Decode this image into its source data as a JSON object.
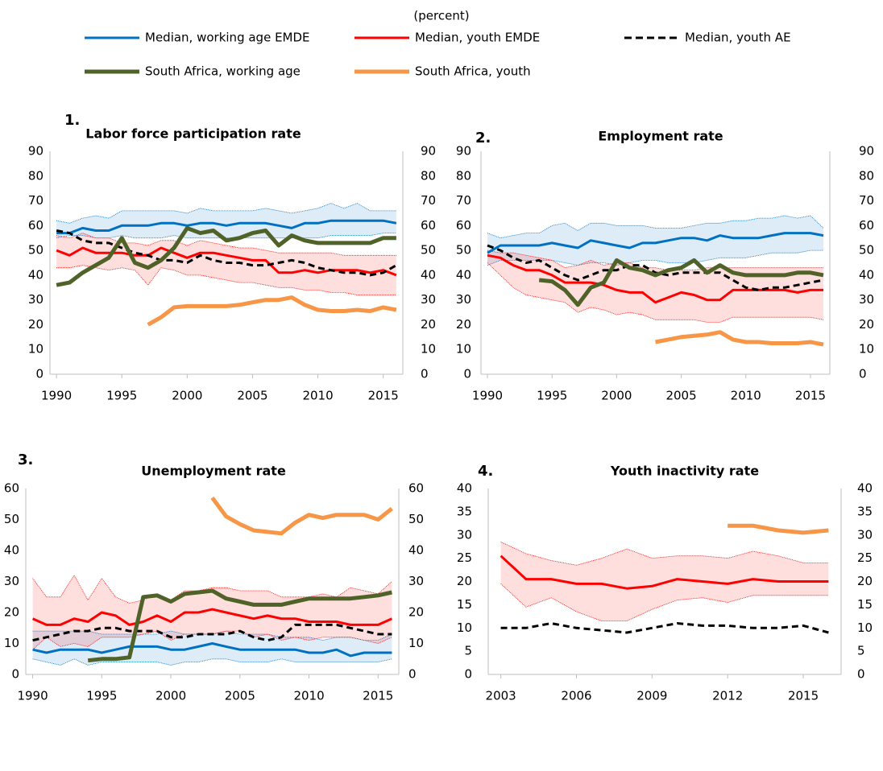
{
  "subtitle": "(percent)",
  "legend": [
    {
      "name": "Median, working age EMDE",
      "color": "#0070c0",
      "dash": false,
      "width": 3
    },
    {
      "name": "Median, youth EMDE",
      "color": "#ff0000",
      "dash": false,
      "width": 3
    },
    {
      "name": "Median, youth AE",
      "color": "#000000",
      "dash": true,
      "width": 3
    },
    {
      "name": "South Africa, working age",
      "color": "#4f6228",
      "dash": false,
      "width": 5
    },
    {
      "name": "South Africa, youth",
      "color": "#f79646",
      "dash": false,
      "width": 5
    }
  ],
  "chart_data": [
    {
      "type": "line",
      "number": "1.",
      "title": "Labor force participation rate",
      "x": [
        1990,
        1991,
        1992,
        1993,
        1994,
        1995,
        1996,
        1997,
        1998,
        1999,
        2000,
        2001,
        2002,
        2003,
        2004,
        2005,
        2006,
        2007,
        2008,
        2009,
        2010,
        2011,
        2012,
        2013,
        2014,
        2015,
        2016
      ],
      "xlim": [
        1989.5,
        2016.5
      ],
      "xticks": [
        1990,
        1995,
        2000,
        2005,
        2010,
        2015
      ],
      "ylim": [
        0,
        90
      ],
      "yticks": [
        0,
        10,
        20,
        30,
        40,
        50,
        60,
        70,
        80,
        90
      ],
      "bands": [
        {
          "color": "#0070c0",
          "upper": [
            62,
            61,
            63,
            64,
            63,
            66,
            66,
            66,
            66,
            66,
            65,
            67,
            66,
            66,
            66,
            66,
            67,
            66,
            65,
            66,
            67,
            69,
            67,
            69,
            66,
            66,
            66
          ],
          "lower": [
            55,
            56,
            56,
            55,
            55,
            56,
            55,
            55,
            55,
            56,
            55,
            55,
            55,
            55,
            55,
            55,
            55,
            55,
            55,
            55,
            55,
            56,
            56,
            56,
            56,
            57,
            57
          ]
        },
        {
          "color": "#ff0000",
          "upper": [
            56,
            55,
            57,
            55,
            55,
            53,
            53,
            52,
            54,
            54,
            52,
            54,
            53,
            52,
            51,
            51,
            50,
            49,
            49,
            49,
            49,
            49,
            48,
            48,
            48,
            48,
            48
          ],
          "lower": [
            43,
            43,
            44,
            43,
            42,
            43,
            42,
            36,
            43,
            42,
            40,
            40,
            39,
            38,
            37,
            37,
            36,
            35,
            35,
            34,
            34,
            33,
            33,
            32,
            32,
            32,
            32
          ]
        }
      ],
      "series": [
        {
          "name": "Median, working age EMDE",
          "values": [
            57,
            57,
            59,
            58,
            58,
            60,
            60,
            60,
            61,
            61,
            60,
            61,
            61,
            60,
            61,
            61,
            61,
            60,
            59,
            61,
            61,
            62,
            62,
            62,
            62,
            62,
            61
          ]
        },
        {
          "name": "Median, youth EMDE",
          "values": [
            50,
            48,
            51,
            49,
            49,
            49,
            48,
            48,
            51,
            49,
            47,
            49,
            49,
            48,
            47,
            46,
            46,
            41,
            41,
            42,
            41,
            42,
            42,
            42,
            41,
            42,
            40
          ]
        },
        {
          "name": "Median, youth AE",
          "values": [
            58,
            57,
            54,
            53,
            53,
            51,
            49,
            48,
            46,
            46,
            45,
            48,
            46,
            45,
            45,
            44,
            44,
            45,
            46,
            45,
            43,
            42,
            41,
            41,
            40,
            41,
            44
          ]
        },
        {
          "name": "South Africa, working age",
          "values": [
            36,
            37,
            41,
            44,
            47,
            55,
            45,
            43,
            46,
            51,
            59,
            57,
            58,
            54,
            55,
            57,
            58,
            52,
            56,
            54,
            53,
            53,
            53,
            53,
            53,
            55,
            55
          ]
        },
        {
          "name": "South Africa, youth",
          "values": [
            null,
            null,
            null,
            null,
            null,
            null,
            null,
            20,
            23,
            27,
            27.5,
            27.5,
            27.5,
            27.5,
            28,
            29,
            30,
            30,
            31,
            28,
            26,
            25.5,
            25.5,
            26,
            25.5,
            27,
            26
          ]
        }
      ]
    },
    {
      "type": "line",
      "number": "2.",
      "title": "Employment rate",
      "x": [
        1990,
        1991,
        1992,
        1993,
        1994,
        1995,
        1996,
        1997,
        1998,
        1999,
        2000,
        2001,
        2002,
        2003,
        2004,
        2005,
        2006,
        2007,
        2008,
        2009,
        2010,
        2011,
        2012,
        2013,
        2014,
        2015,
        2016
      ],
      "xlim": [
        1989.5,
        2016.5
      ],
      "xticks": [
        1990,
        1995,
        2000,
        2005,
        2010,
        2015
      ],
      "ylim": [
        0,
        90
      ],
      "yticks": [
        0,
        10,
        20,
        30,
        40,
        50,
        60,
        70,
        80,
        90
      ],
      "bands": [
        {
          "color": "#0070c0",
          "upper": [
            57,
            55,
            56,
            57,
            57,
            60,
            61,
            58,
            61,
            61,
            60,
            60,
            60,
            59,
            59,
            59,
            60,
            61,
            61,
            62,
            62,
            63,
            63,
            64,
            63,
            64,
            59
          ],
          "lower": [
            44,
            46,
            46,
            46,
            46,
            46,
            45,
            44,
            45,
            45,
            44,
            45,
            46,
            46,
            45,
            45,
            45,
            46,
            47,
            47,
            47,
            48,
            49,
            49,
            49,
            50,
            50
          ]
        },
        {
          "color": "#ff0000",
          "upper": [
            50,
            49,
            49,
            48,
            47,
            46,
            43,
            44,
            46,
            44,
            45,
            45,
            43,
            43,
            42,
            42,
            42,
            43,
            43,
            43,
            43,
            43,
            43,
            43,
            43,
            43,
            43
          ],
          "lower": [
            45,
            40,
            35,
            32,
            31,
            30,
            29,
            25,
            27,
            26,
            24,
            25,
            24,
            22,
            22,
            22,
            22,
            21,
            21,
            23,
            23,
            23,
            23,
            23,
            23,
            23,
            22
          ]
        }
      ],
      "series": [
        {
          "name": "Median, working age EMDE",
          "values": [
            49,
            52,
            52,
            52,
            52,
            53,
            52,
            51,
            54,
            53,
            52,
            51,
            53,
            53,
            54,
            55,
            55,
            54,
            56,
            55,
            55,
            55,
            56,
            57,
            57,
            57,
            56
          ]
        },
        {
          "name": "Median, youth EMDE",
          "values": [
            48,
            47,
            44,
            42,
            42,
            40,
            37,
            37,
            37,
            36,
            34,
            33,
            33,
            29,
            31,
            33,
            32,
            30,
            30,
            34,
            34,
            34,
            34,
            34,
            33,
            34,
            34
          ]
        },
        {
          "name": "Median, youth AE",
          "values": [
            52,
            50,
            47,
            45,
            46,
            43,
            40,
            38,
            40,
            42,
            42,
            44,
            44,
            41,
            40,
            41,
            41,
            41,
            41,
            38,
            35,
            34,
            35,
            35,
            36,
            37,
            38
          ]
        },
        {
          "name": "South Africa, working age",
          "values": [
            null,
            null,
            null,
            null,
            38,
            37.5,
            34,
            28,
            35,
            37,
            46,
            43,
            42,
            40,
            42,
            43,
            46,
            41,
            44,
            41,
            40,
            40,
            40,
            40,
            41,
            41,
            40
          ]
        },
        {
          "name": "South Africa, youth",
          "values": [
            null,
            null,
            null,
            null,
            null,
            null,
            null,
            null,
            null,
            null,
            null,
            null,
            null,
            13,
            14,
            15,
            15.5,
            16,
            17,
            14,
            13,
            13,
            12.5,
            12.5,
            12.5,
            13,
            12
          ]
        }
      ]
    },
    {
      "type": "line",
      "number": "3.",
      "title": "Unemployment rate",
      "x": [
        1990,
        1991,
        1992,
        1993,
        1994,
        1995,
        1996,
        1997,
        1998,
        1999,
        2000,
        2001,
        2002,
        2003,
        2004,
        2005,
        2006,
        2007,
        2008,
        2009,
        2010,
        2011,
        2012,
        2013,
        2014,
        2015,
        2016
      ],
      "xlim": [
        1989.5,
        2016.5
      ],
      "xticks": [
        1990,
        1995,
        2000,
        2005,
        2010,
        2015
      ],
      "ylim": [
        0,
        60
      ],
      "yticks": [
        0,
        10,
        20,
        30,
        40,
        50,
        60
      ],
      "bands": [
        {
          "color": "#0070c0",
          "upper": [
            14,
            14,
            14,
            14,
            14,
            13,
            13,
            13,
            13,
            13,
            14,
            13,
            13,
            13,
            14,
            13,
            13,
            13,
            12,
            12,
            12,
            11,
            12,
            12,
            11,
            11,
            13
          ],
          "lower": [
            5,
            4,
            3,
            5,
            3,
            4,
            4,
            4,
            4,
            4,
            3,
            4,
            4,
            5,
            5,
            4,
            4,
            4,
            5,
            4,
            4,
            4,
            4,
            4,
            4,
            4,
            5
          ]
        },
        {
          "color": "#ff0000",
          "upper": [
            31,
            25,
            25,
            32,
            24,
            31,
            25,
            23,
            24,
            26,
            24,
            27,
            27,
            28,
            28,
            27,
            27,
            27,
            25,
            25,
            25,
            26,
            25,
            28,
            27,
            26,
            30
          ],
          "lower": [
            8,
            12,
            9,
            10,
            9,
            12,
            12,
            12,
            13,
            14,
            11,
            13,
            13,
            13,
            14,
            14,
            12,
            13,
            11,
            12,
            11,
            12,
            12,
            12,
            11,
            10,
            12
          ]
        }
      ],
      "series": [
        {
          "name": "Median, working age EMDE",
          "values": [
            8,
            7,
            8,
            8,
            8,
            7,
            8,
            9,
            9,
            9,
            8,
            8,
            9,
            10,
            9,
            8,
            8,
            8,
            8,
            8,
            7,
            7,
            8,
            6,
            7,
            7,
            7
          ]
        },
        {
          "name": "Median, youth EMDE",
          "values": [
            18,
            16,
            16,
            18,
            17,
            20,
            19,
            16,
            17,
            19,
            17,
            20,
            20,
            21,
            20,
            19,
            18,
            19,
            18,
            18,
            17,
            17,
            17,
            16,
            16,
            16,
            18
          ]
        },
        {
          "name": "Median, youth AE",
          "values": [
            11,
            12,
            13,
            14,
            14,
            15,
            15,
            14,
            14,
            14,
            12,
            12,
            13,
            13,
            13,
            14,
            12,
            11,
            12,
            16,
            16,
            16,
            16,
            15,
            14,
            13,
            13
          ]
        },
        {
          "name": "South Africa, working age",
          "values": [
            null,
            null,
            null,
            null,
            4.5,
            5,
            5,
            5.5,
            25,
            25.5,
            23.5,
            26,
            26.5,
            27,
            24.5,
            23.5,
            22.5,
            22.5,
            22.5,
            23.5,
            24.5,
            24.5,
            24.5,
            24.5,
            25,
            25.5,
            26.5
          ]
        },
        {
          "name": "South Africa, youth",
          "values": [
            null,
            null,
            null,
            null,
            null,
            null,
            null,
            null,
            null,
            null,
            null,
            null,
            null,
            57,
            51,
            48.5,
            46.5,
            46,
            45.5,
            49,
            51.5,
            50.5,
            51.5,
            51.5,
            51.5,
            50,
            53.5
          ]
        }
      ]
    },
    {
      "type": "line",
      "number": "4.",
      "title": "Youth inactivity rate",
      "x": [
        2003,
        2004,
        2005,
        2006,
        2007,
        2008,
        2009,
        2010,
        2011,
        2012,
        2013,
        2014,
        2015,
        2016
      ],
      "xlim": [
        2002.5,
        2016.5
      ],
      "xticks": [
        2003,
        2006,
        2009,
        2012,
        2015
      ],
      "ylim": [
        0,
        40
      ],
      "yticks": [
        0,
        5,
        10,
        15,
        20,
        25,
        30,
        35,
        40
      ],
      "bands": [
        {
          "color": "#ff0000",
          "upper": [
            28.5,
            26,
            24.5,
            23.5,
            25,
            27,
            25,
            25.5,
            25.5,
            25,
            26.5,
            25.5,
            24,
            24
          ],
          "lower": [
            19.5,
            14.5,
            16.5,
            13.5,
            11.5,
            11.5,
            14,
            16,
            16.5,
            15.5,
            17,
            17,
            17,
            17
          ]
        }
      ],
      "series": [
        {
          "name": "Median, youth EMDE",
          "values": [
            25.5,
            20.5,
            20.5,
            19.5,
            19.5,
            18.5,
            19,
            20.5,
            20,
            19.5,
            20.5,
            20,
            20,
            20
          ]
        },
        {
          "name": "Median, youth AE",
          "values": [
            10,
            10,
            11,
            10,
            9.5,
            9,
            10,
            11,
            10.5,
            10.5,
            10,
            10,
            10.5,
            9
          ]
        },
        {
          "name": "South Africa, youth",
          "values": [
            null,
            null,
            null,
            null,
            null,
            null,
            null,
            null,
            null,
            32,
            32,
            31,
            30.5,
            31
          ]
        }
      ]
    }
  ]
}
